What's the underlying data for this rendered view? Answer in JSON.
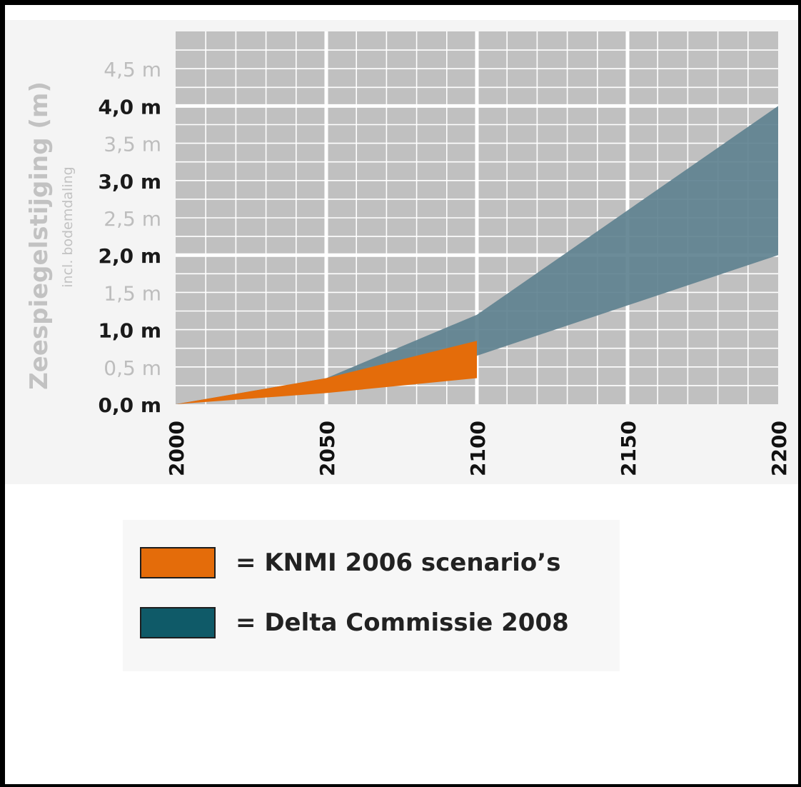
{
  "chart_data": {
    "type": "area",
    "ylabel": "Zeespiegelstijging (m)",
    "ylabel_sub": "incl. bodemdaling",
    "x_ticks": [
      "2000",
      "2050",
      "2100",
      "2150",
      "2200"
    ],
    "xlim": [
      2000,
      2200
    ],
    "ylim": [
      0,
      5
    ],
    "y_ticks": [
      {
        "value": 0.0,
        "label": "0,0 m",
        "major": true
      },
      {
        "value": 0.5,
        "label": "0,5 m",
        "major": false
      },
      {
        "value": 1.0,
        "label": "1,0 m",
        "major": true
      },
      {
        "value": 1.5,
        "label": "1,5 m",
        "major": false
      },
      {
        "value": 2.0,
        "label": "2,0 m",
        "major": true
      },
      {
        "value": 2.5,
        "label": "2,5 m",
        "major": false
      },
      {
        "value": 3.0,
        "label": "3,0 m",
        "major": true
      },
      {
        "value": 3.5,
        "label": "3,5 m",
        "major": false
      },
      {
        "value": 4.0,
        "label": "4,0 m",
        "major": true
      },
      {
        "value": 4.5,
        "label": "4,5 m",
        "major": false
      }
    ],
    "grid": true,
    "legend_position": "bottom",
    "series": [
      {
        "name": "= Delta Commissie 2008",
        "color": "#5f8290",
        "upper": [
          [
            2000,
            0.0
          ],
          [
            2050,
            0.35
          ],
          [
            2100,
            1.2
          ],
          [
            2200,
            4.0
          ]
        ],
        "lower": [
          [
            2000,
            0.0
          ],
          [
            2050,
            0.2
          ],
          [
            2100,
            0.65
          ],
          [
            2200,
            2.0
          ]
        ]
      },
      {
        "name": "= KNMI 2006 scenario's",
        "color": "#e46c0a",
        "upper": [
          [
            2000,
            0.0
          ],
          [
            2050,
            0.35
          ],
          [
            2100,
            0.85
          ]
        ],
        "lower": [
          [
            2000,
            0.0
          ],
          [
            2050,
            0.15
          ],
          [
            2100,
            0.35
          ]
        ]
      }
    ]
  },
  "legend": {
    "items": [
      {
        "label": "= KNMI 2006 scenario’s",
        "color": "#e46c0a"
      },
      {
        "label": "= Delta Commissie 2008",
        "color": "#0f5a68"
      }
    ]
  }
}
